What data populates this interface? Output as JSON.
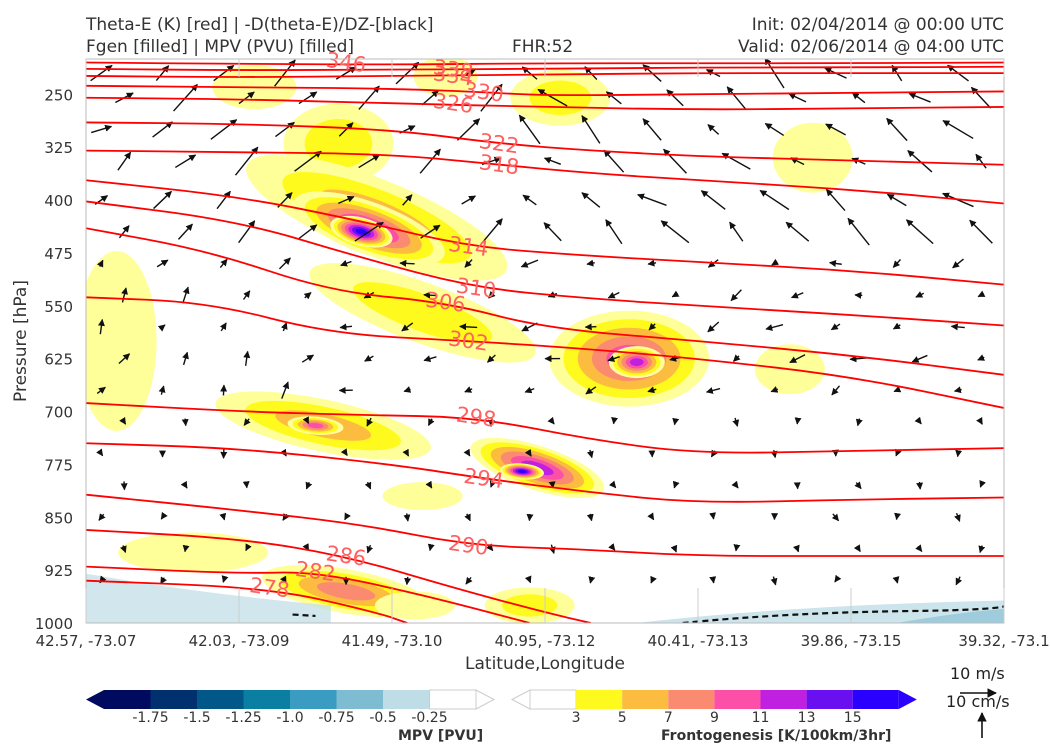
{
  "header": {
    "title_left_1": "Theta-E (K) [red] | -D(theta-E)/DZ-[black]",
    "title_left_2": "Fgen [filled] | MPV (PVU) [filled]",
    "fhr": "FHR:52",
    "init": "Init: 02/04/2014 @ 00:00 UTC",
    "valid": "Valid: 02/06/2014 @ 04:00 UTC"
  },
  "colors": {
    "theta_e": "#ff0000",
    "theta_e_label": "#ff6060",
    "fgen": [
      "#ffff99",
      "#fffa1e",
      "#fbbc40",
      "#fa8a70",
      "#fc50a8",
      "#c020e0",
      "#6a10f0",
      "#2a00ff"
    ],
    "mpv": [
      "#000a5e",
      "#00316e",
      "#005788",
      "#0a7fa2",
      "#3a9cc0",
      "#7ebcd2",
      "#bfdde6",
      "#ffffff"
    ]
  },
  "chart_data": {
    "type": "cross-section",
    "xlabel": "Latitude,Longitude",
    "ylabel": "Pressure [hPa]",
    "x_ticks": [
      "42.57, -73.07",
      "42.03, -73.09",
      "41.49, -73.10",
      "40.95, -73.12",
      "40.41, -73.13",
      "39.86, -73.15",
      "39.32, -73.1"
    ],
    "y_ticks": [
      250,
      325,
      400,
      475,
      550,
      625,
      700,
      775,
      850,
      925,
      1000
    ],
    "ylim": [
      200,
      1000
    ],
    "theta_e_contour_labels": [
      {
        "value": "346",
        "x_index": 1.7,
        "p": 205
      },
      {
        "value": "338",
        "x_index": 2.4,
        "p": 215
      },
      {
        "value": "334",
        "x_index": 2.4,
        "p": 224
      },
      {
        "value": "330",
        "x_index": 2.6,
        "p": 247
      },
      {
        "value": "326",
        "x_index": 2.4,
        "p": 263
      },
      {
        "value": "322",
        "x_index": 2.7,
        "p": 320
      },
      {
        "value": "318",
        "x_index": 2.7,
        "p": 350
      },
      {
        "value": "314",
        "x_index": 2.5,
        "p": 466
      },
      {
        "value": "310",
        "x_index": 2.55,
        "p": 525
      },
      {
        "value": "306",
        "x_index": 2.35,
        "p": 545
      },
      {
        "value": "302",
        "x_index": 2.5,
        "p": 600
      },
      {
        "value": "298",
        "x_index": 2.55,
        "p": 708
      },
      {
        "value": "294",
        "x_index": 2.6,
        "p": 795
      },
      {
        "value": "290",
        "x_index": 2.5,
        "p": 890
      },
      {
        "value": "286",
        "x_index": 1.7,
        "p": 905
      },
      {
        "value": "282",
        "x_index": 1.5,
        "p": 927
      },
      {
        "value": "278",
        "x_index": 1.2,
        "p": 950
      }
    ],
    "fgen_colorbar": {
      "label": "Frontogenesis [K/100km/3hr]",
      "ticks": [
        "3",
        "5",
        "7",
        "9",
        "11",
        "13",
        "15"
      ]
    },
    "mpv_colorbar": {
      "label": "MPV [PVU]",
      "ticks": [
        "-1.75",
        "-1.5",
        "-1.25",
        "-1.0",
        "-0.75",
        "-0.5",
        "-0.25"
      ]
    },
    "wind_key": {
      "u_label": "10 m/s",
      "w_label": "10 cm/s"
    }
  }
}
